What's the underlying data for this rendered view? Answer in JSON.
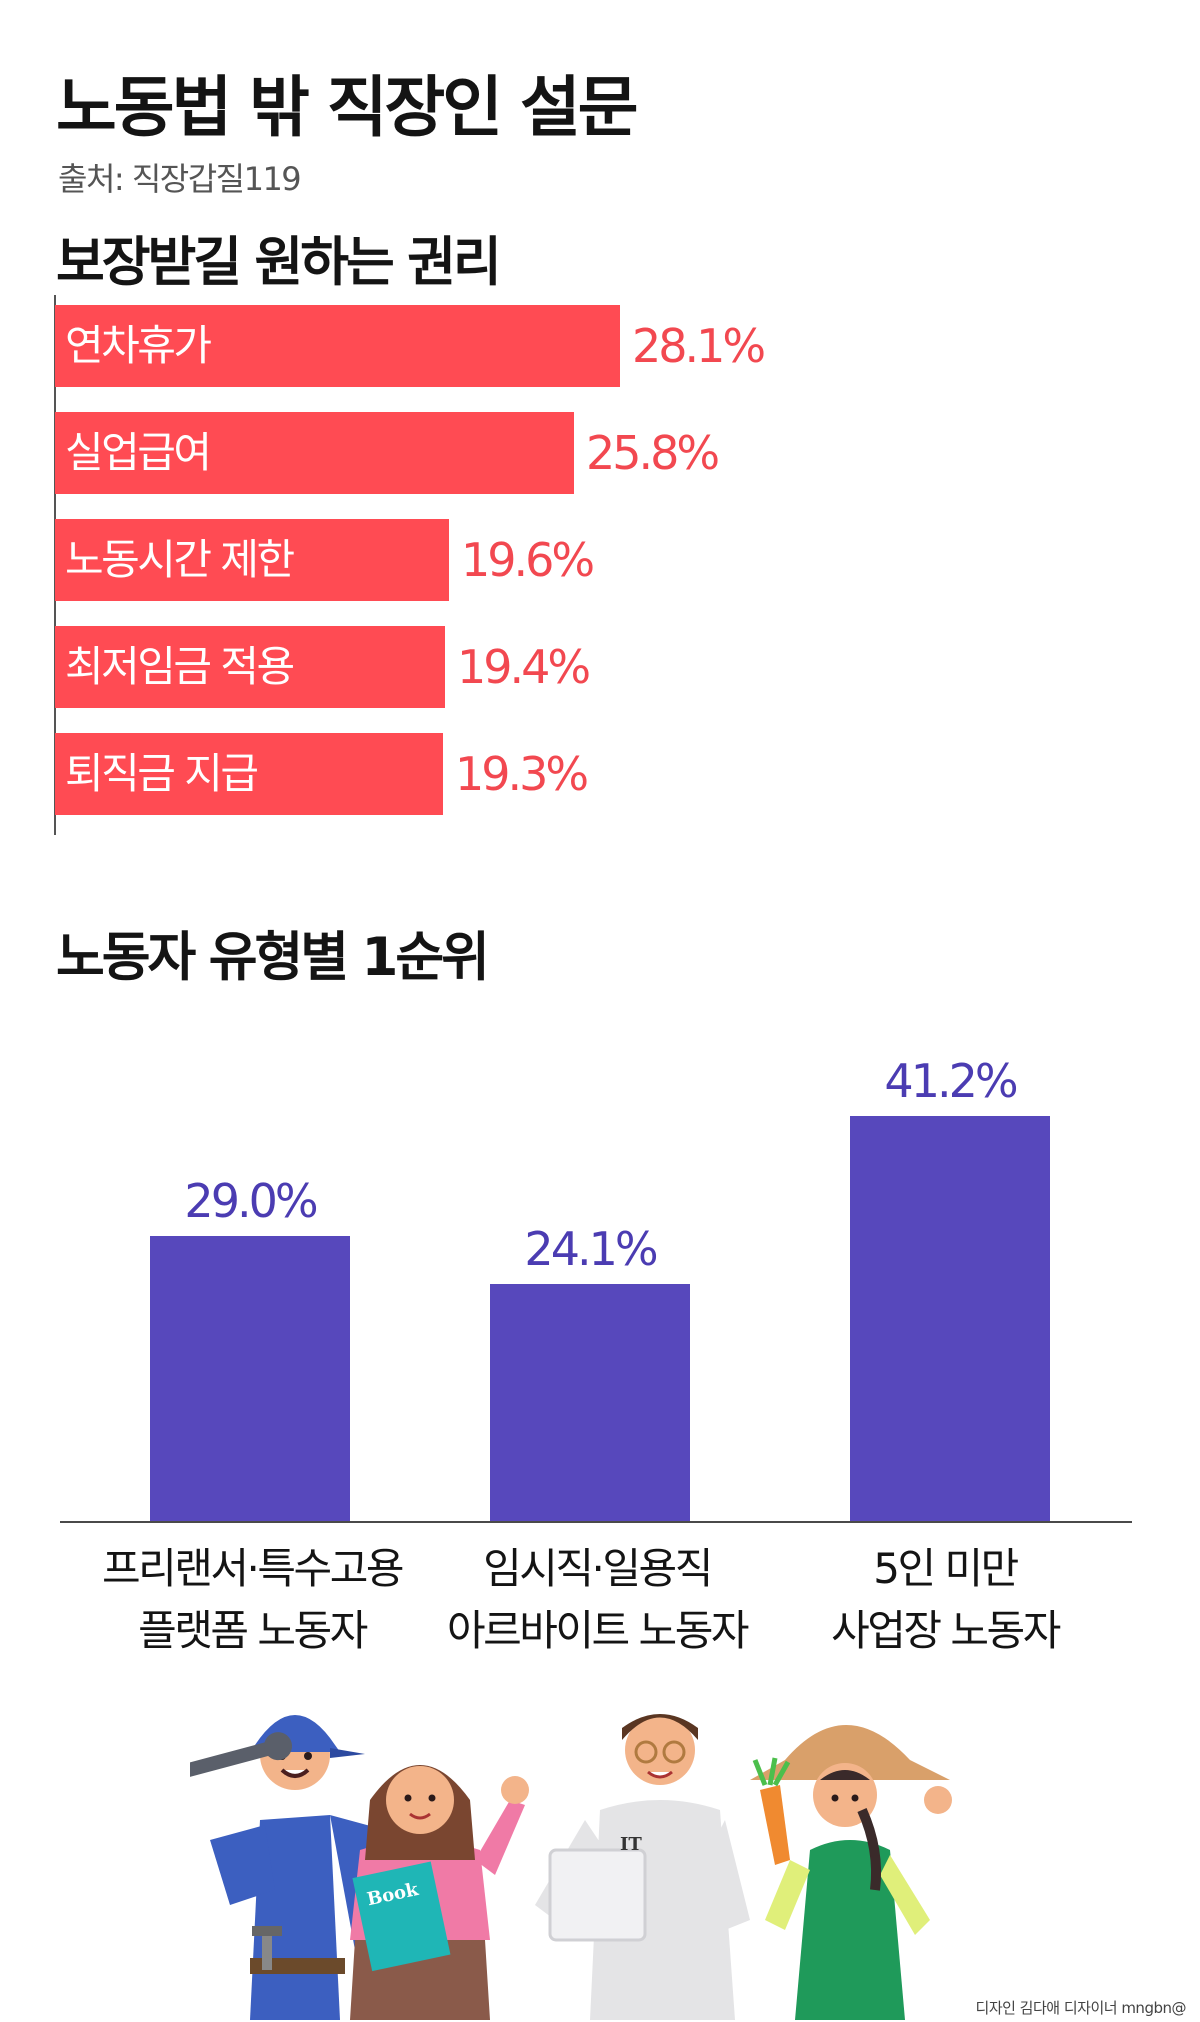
{
  "page": {
    "title": "노동법 밖 직장인 설문",
    "source": "출처: 직장갑질119",
    "credit": "디자인 김다애 디자이너 mngbn@"
  },
  "colors": {
    "rights_bar": "#ff4b53",
    "rights_value": "#f24850",
    "type_bar": "#5748bc",
    "type_value": "#4b3cb2"
  },
  "chart_data": [
    {
      "type": "bar",
      "orientation": "horizontal",
      "title": "보장받길 원하는 권리",
      "categories": [
        "연차휴가",
        "실업급여",
        "노동시간 제한",
        "최저임금 적용",
        "퇴직금 지급"
      ],
      "values": [
        28.1,
        25.8,
        19.6,
        19.4,
        19.3
      ],
      "value_labels": [
        "28.1%",
        "25.8%",
        "19.6%",
        "19.4%",
        "19.3%"
      ],
      "unit": "%",
      "xlim": [
        0,
        39.4
      ],
      "grid": false,
      "legend": "none"
    },
    {
      "type": "bar",
      "orientation": "vertical",
      "title": "노동자 유형별 1순위",
      "categories": [
        "프리랜서·특수고용\n플랫폼 노동자",
        "임시직·일용직\n아르바이트 노동자",
        "5인 미만\n사업장 노동자"
      ],
      "values": [
        29.0,
        24.1,
        41.2
      ],
      "value_labels": [
        "29.0%",
        "24.1%",
        "41.2%"
      ],
      "unit": "%",
      "ylim": [
        0,
        50
      ],
      "grid": false,
      "legend": "none"
    }
  ],
  "illustration": {
    "description_icons": [
      "mechanic-worker-icon",
      "student-with-book-icon",
      "it-worker-icon",
      "farmer-icon"
    ],
    "book_text": "Book",
    "shirt_text": "IT"
  }
}
